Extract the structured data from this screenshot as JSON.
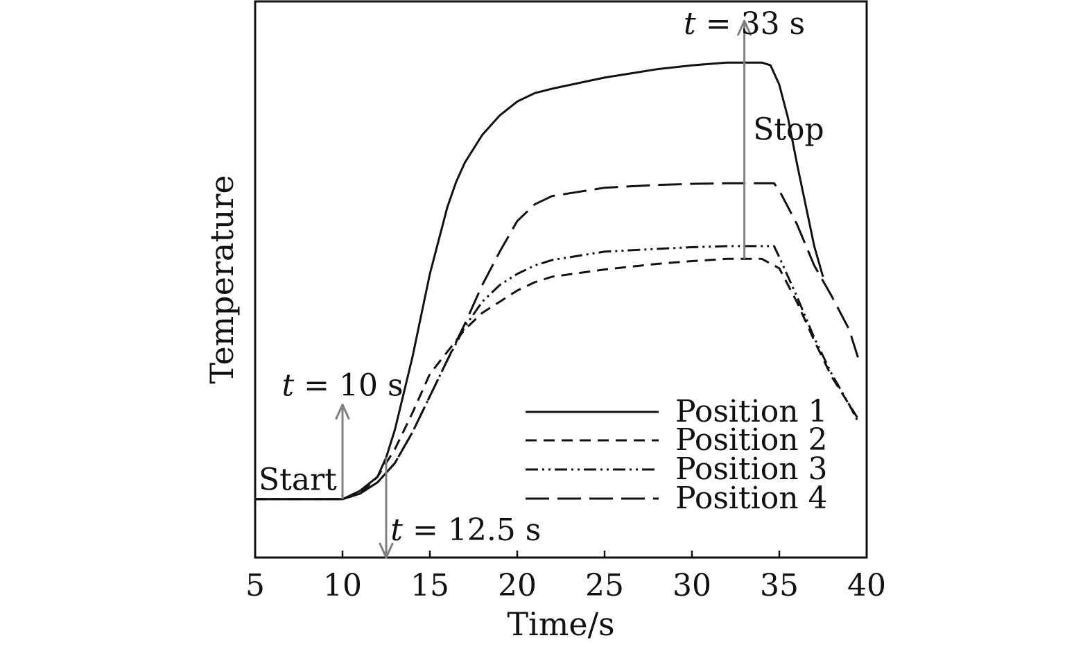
{
  "chart_data": {
    "type": "line",
    "xlabel": "Time/s",
    "ylabel": "Temperature",
    "xlim": [
      5,
      40
    ],
    "ylim": [
      0,
      100
    ],
    "xticks": [
      5,
      10,
      15,
      20,
      25,
      30,
      35,
      40
    ],
    "y_tick_labels": false,
    "grid": false,
    "legend_position": "bottom-right",
    "series": [
      {
        "name": "Position 1",
        "dash": "solid",
        "x": [
          5,
          10,
          11,
          12,
          12.5,
          13,
          14,
          15,
          16,
          16.5,
          17,
          18,
          19,
          20,
          21,
          22,
          25,
          28,
          30,
          32,
          33,
          34,
          34.5,
          35,
          35.5,
          36,
          37,
          37.5
        ],
        "y": [
          10.5,
          10.5,
          12,
          14.5,
          18,
          23,
          36,
          51,
          63,
          67.5,
          71,
          76,
          79.5,
          82,
          83.5,
          84.3,
          86.3,
          87.8,
          88.5,
          89,
          89,
          89,
          88.5,
          85,
          79,
          71,
          56,
          50.5
        ]
      },
      {
        "name": "Position 2",
        "dash": "short-dash",
        "x": [
          5,
          10,
          11,
          12,
          13,
          14,
          15,
          16,
          17,
          18,
          19,
          20,
          21,
          22,
          25,
          28,
          30,
          32,
          33,
          34,
          35,
          36,
          37,
          38,
          39,
          39.5
        ],
        "y": [
          10.5,
          10.5,
          11.5,
          14.5,
          19.5,
          26,
          33,
          37,
          41,
          44,
          46,
          48,
          49.5,
          50.5,
          51.8,
          52.8,
          53.3,
          53.7,
          53.7,
          53.7,
          52,
          46,
          39,
          32.5,
          27.5,
          25
        ]
      },
      {
        "name": "Position 3",
        "dash": "dash-dot-dot",
        "x": [
          5,
          10,
          11,
          12,
          13,
          14,
          15,
          16,
          17,
          18,
          19,
          20,
          21,
          22,
          25,
          28,
          30,
          32,
          33,
          34,
          34.7,
          35,
          36,
          37,
          38,
          39,
          39.5
        ],
        "y": [
          10.5,
          10.5,
          11.5,
          13.5,
          17,
          22.5,
          29,
          35.5,
          41.5,
          46,
          49,
          51,
          52.5,
          53.5,
          55,
          55.5,
          55.8,
          56,
          56,
          56,
          56,
          54,
          47,
          39.5,
          33,
          27.5,
          24.5
        ]
      },
      {
        "name": "Position 4",
        "dash": "long-dash",
        "x": [
          5,
          10,
          11,
          12,
          13,
          14,
          15,
          16,
          17,
          18,
          19,
          20,
          21,
          22,
          25,
          28,
          30,
          32,
          33,
          34,
          34.7,
          35,
          36,
          37,
          38,
          39,
          39.5
        ],
        "y": [
          10.5,
          10.5,
          11.5,
          13.5,
          17,
          22.5,
          29,
          35.5,
          42,
          49,
          55,
          60.5,
          63.5,
          65,
          66.5,
          67,
          67.2,
          67.3,
          67.3,
          67.3,
          67.3,
          66,
          60,
          52.5,
          47,
          41,
          36
        ]
      }
    ],
    "annotations": [
      {
        "text_italic": "t",
        "text_rest": " = 10 s",
        "label_x": 10,
        "label_y": 31,
        "arrow": {
          "x": 10,
          "from_y": 10.5,
          "to_y": 27.5
        }
      },
      {
        "text_italic": "",
        "text_rest": "Start",
        "label_x": 5.2,
        "label_y": 14
      },
      {
        "text_italic": "t",
        "text_rest": " = 12.5 s",
        "label_x": 12.75,
        "label_y": 5,
        "arrow": {
          "x": 12.5,
          "from_y": 18,
          "to_y": 0
        }
      },
      {
        "text_italic": "t",
        "text_rest": " = 33 s",
        "label_x": 33,
        "label_y": 96,
        "arrow": {
          "x": 33,
          "from_y": 53.7,
          "to_y": 96.5
        }
      },
      {
        "text_italic": "",
        "text_rest": "Stop",
        "label_x": 33.5,
        "label_y": 77
      }
    ]
  }
}
